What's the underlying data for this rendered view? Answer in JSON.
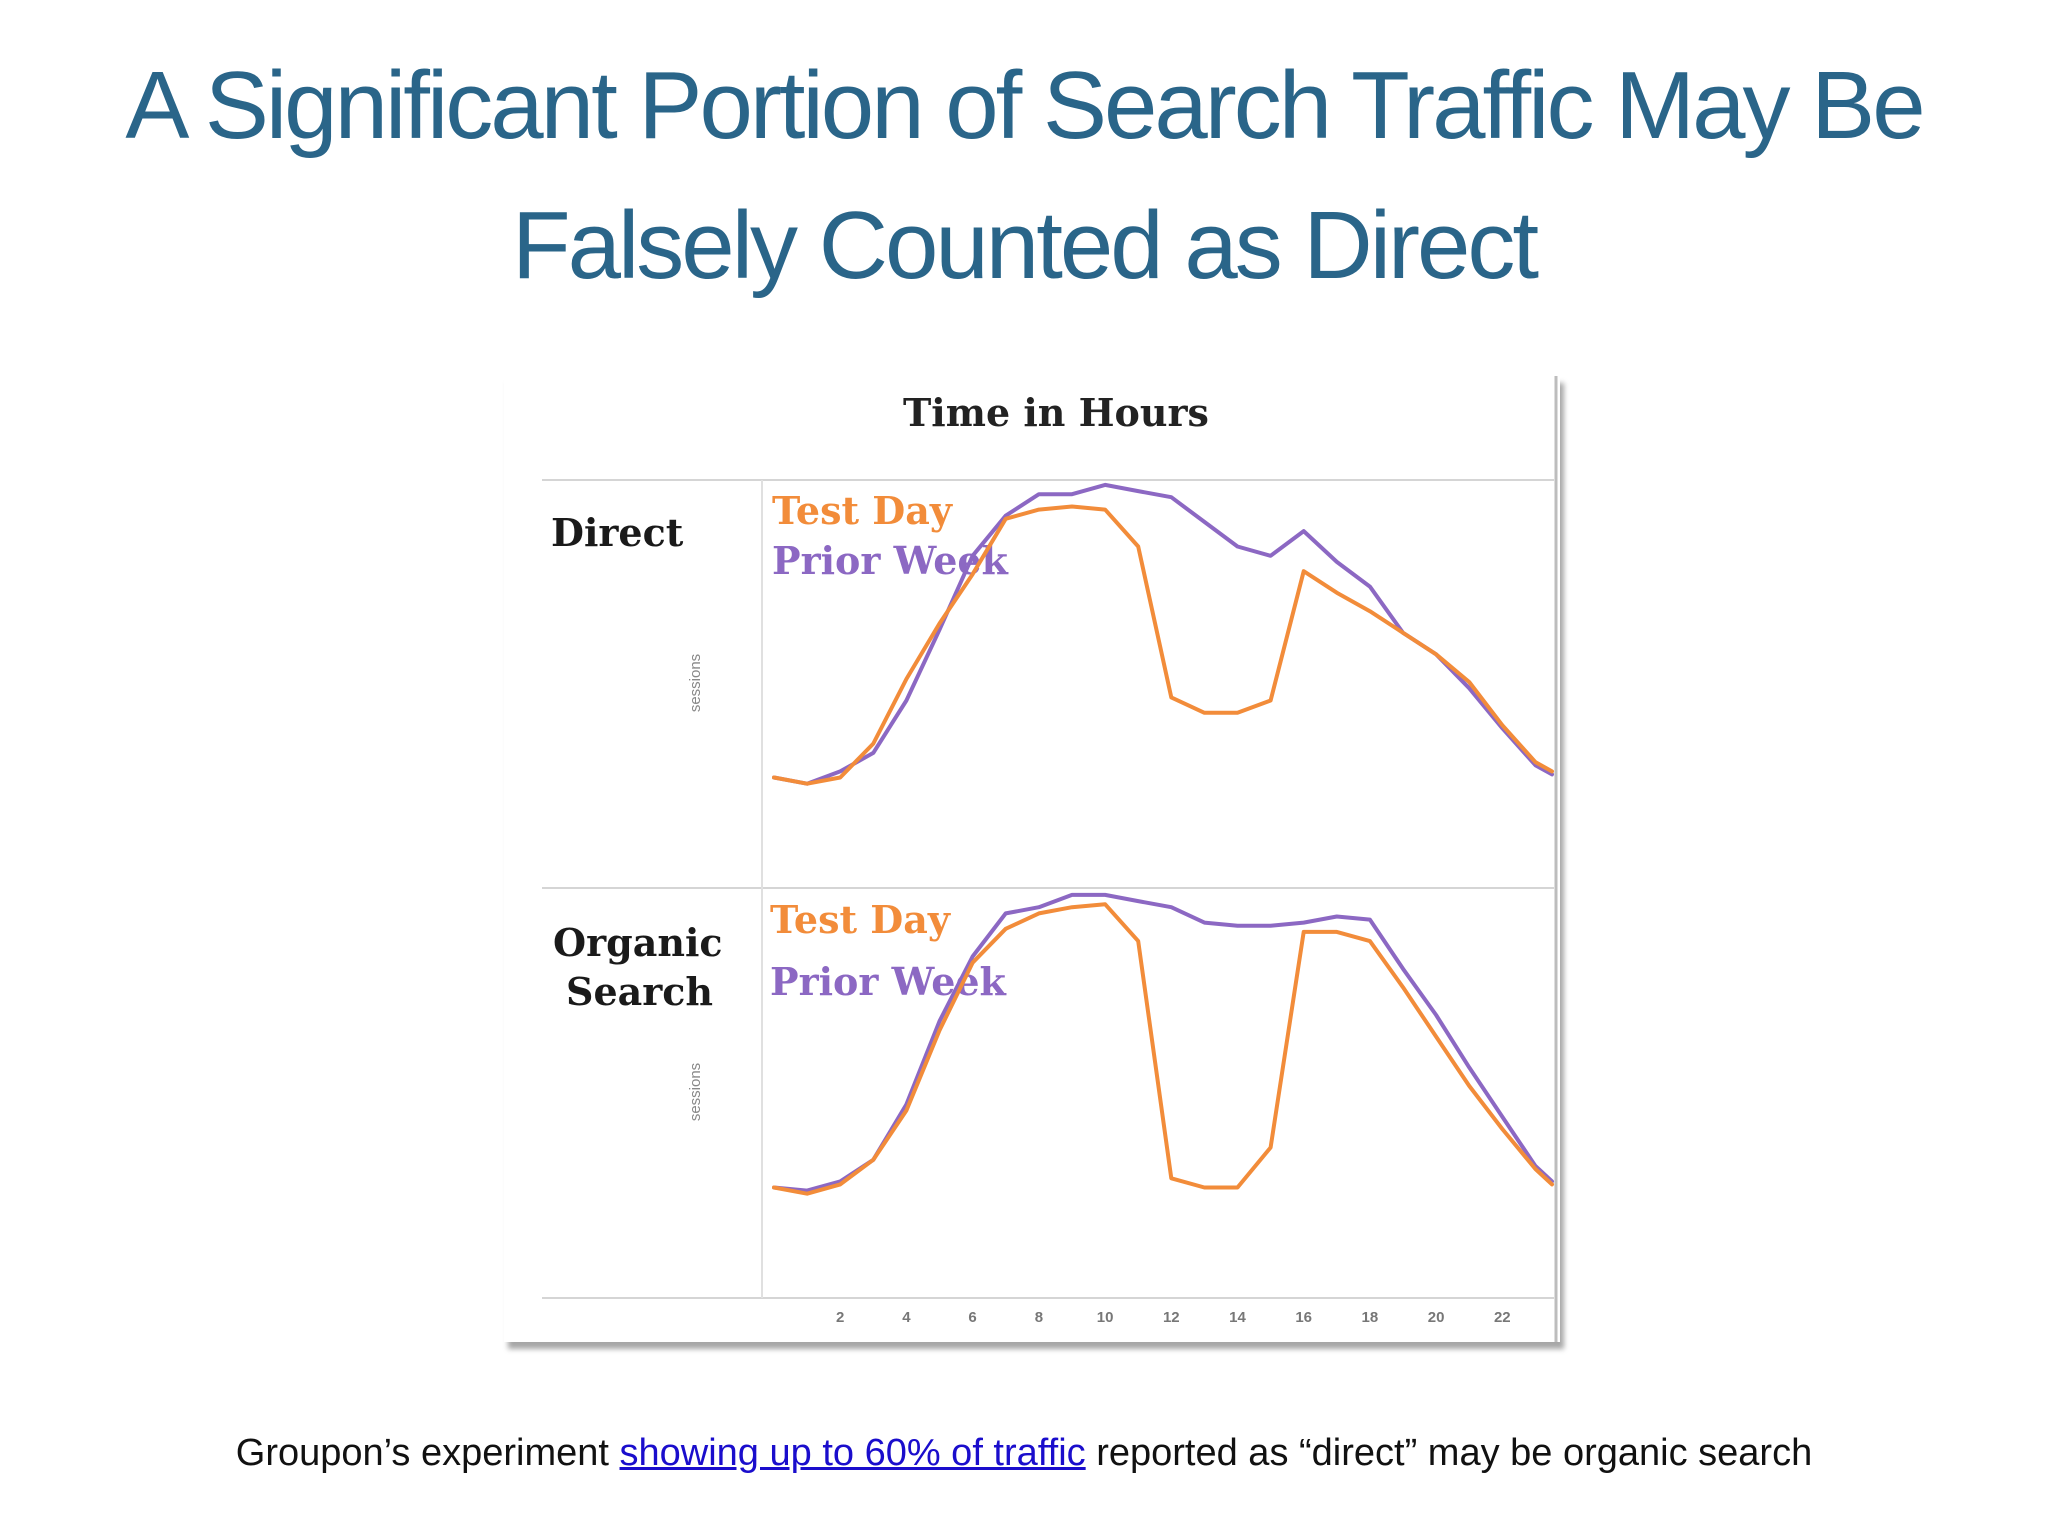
{
  "slide": {
    "title": "A Significant Portion of Search Traffic May Be Falsely Counted as Direct",
    "caption": {
      "before": "Groupon’s experiment ",
      "link": "showing up to 60% of traffic",
      "after": " reported as “direct” may be organic search"
    }
  },
  "colors": {
    "title": "#2a6589",
    "test_day": "#f28c3a",
    "prior_week": "#8c68c3",
    "link": "#1a0dcc"
  },
  "chart_data": {
    "type": "line",
    "title": "Time in Hours",
    "x_ticks": [
      2,
      4,
      6,
      8,
      10,
      12,
      14,
      16,
      18,
      20,
      22
    ],
    "xlim": [
      0,
      23.5
    ],
    "ylim": [
      0,
      100
    ],
    "grid": false,
    "legend_position": "top-left",
    "panels": [
      {
        "label": "Direct",
        "ylabel": "sessions",
        "x": [
          0,
          1,
          2,
          3,
          4,
          5,
          6,
          7,
          8,
          9,
          10,
          11,
          12,
          13,
          14,
          15,
          16,
          17,
          18,
          19,
          20,
          21,
          22,
          23,
          23.5
        ],
        "series": [
          {
            "name": "Test Day",
            "color_key": "test_day",
            "values": [
              6,
              4,
              6,
              17,
              38,
              56,
              72,
              90,
              93,
              94,
              93,
              81,
              32,
              27,
              27,
              31,
              73,
              66,
              60,
              53,
              46,
              37,
              23,
              11,
              8
            ]
          },
          {
            "name": "Prior Week",
            "color_key": "prior_week",
            "values": [
              6,
              4,
              8,
              14,
              31,
              54,
              78,
              91,
              98,
              98,
              101,
              99,
              97,
              89,
              81,
              78,
              86,
              76,
              68,
              53,
              46,
              35,
              22,
              10,
              7
            ]
          }
        ]
      },
      {
        "label": "Organic Search",
        "ylabel": "sessions",
        "x": [
          0,
          1,
          2,
          3,
          4,
          5,
          6,
          7,
          8,
          9,
          10,
          11,
          12,
          13,
          14,
          15,
          16,
          17,
          18,
          19,
          20,
          21,
          22,
          23,
          23.5
        ],
        "series": [
          {
            "name": "Test Day",
            "color_key": "test_day",
            "values": [
              6,
              4,
              7,
              15,
              31,
              57,
              79,
              90,
              95,
              97,
              98,
              86,
              9,
              6,
              6,
              19,
              89,
              89,
              86,
              71,
              55,
              39,
              25,
              12,
              7
            ]
          },
          {
            "name": "Prior Week",
            "color_key": "prior_week",
            "values": [
              6,
              5,
              8,
              15,
              33,
              60,
              81,
              95,
              97,
              101,
              101,
              99,
              97,
              92,
              91,
              91,
              92,
              94,
              93,
              77,
              62,
              45,
              29,
              13,
              8
            ]
          }
        ]
      }
    ]
  }
}
